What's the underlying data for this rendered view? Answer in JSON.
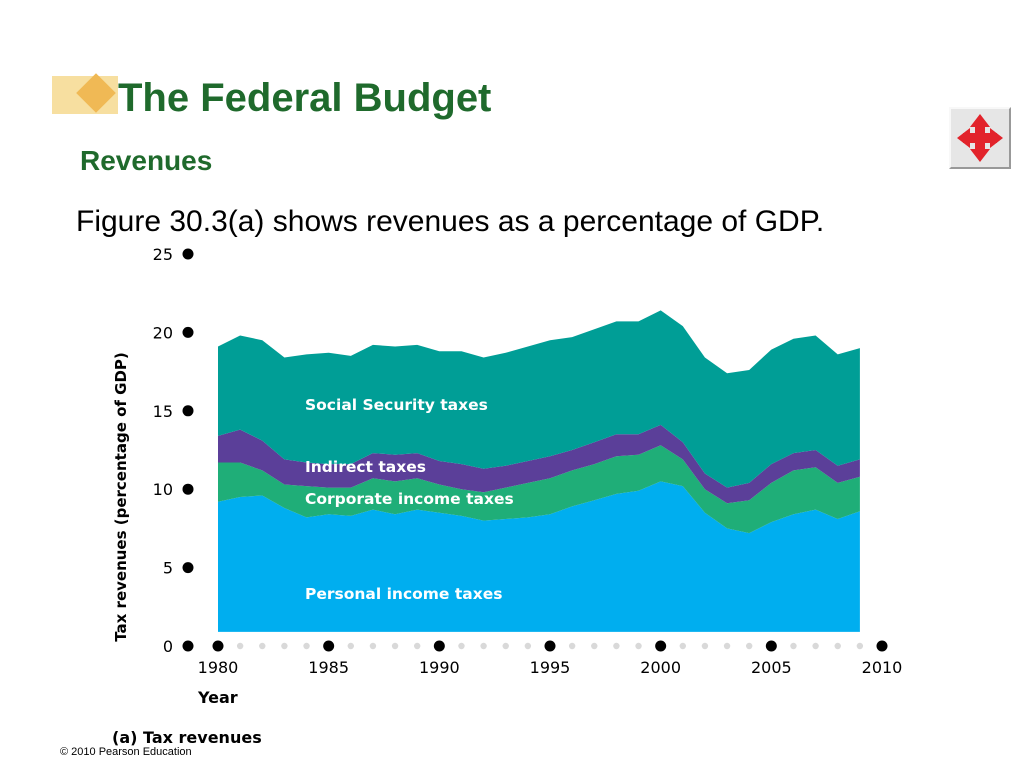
{
  "slide": {
    "title": "The Federal Budget",
    "subtitle": "Revenues",
    "body": "Figure 30.3(a) shows revenues as a percentage of GDP.",
    "footer": "© 2010 Pearson Education"
  },
  "nav_button": {
    "icon": "four-way-arrow-icon",
    "color": "#e2232b"
  },
  "colors": {
    "title": "#1f6a2c",
    "personal": "#00aeef",
    "corporate": "#1fae78",
    "indirect": "#5b3f99",
    "social": "#009e96",
    "dots": "#000000",
    "minor_dots": "#d9d9d9"
  },
  "chart_data": {
    "type": "area",
    "stacked": true,
    "caption": "(a) Tax revenues",
    "xlabel": "Year",
    "ylabel": "Tax revenues (percentage of GDP)",
    "xlim": [
      1980,
      2010
    ],
    "ylim": [
      0,
      25
    ],
    "x_ticks": [
      1980,
      1985,
      1990,
      1995,
      2000,
      2005,
      2010
    ],
    "y_ticks": [
      0,
      5,
      10,
      15,
      20,
      25
    ],
    "grid": false,
    "legend": "inline labels",
    "x": [
      1980,
      1981,
      1982,
      1983,
      1984,
      1985,
      1986,
      1987,
      1988,
      1989,
      1990,
      1991,
      1992,
      1993,
      1994,
      1995,
      1996,
      1997,
      1998,
      1999,
      2000,
      2001,
      2002,
      2003,
      2004,
      2005,
      2006,
      2007,
      2008,
      2009
    ],
    "series": [
      {
        "name": "Personal income taxes",
        "color": "#00aeef",
        "values": [
          9.2,
          9.5,
          9.6,
          8.8,
          8.2,
          8.4,
          8.3,
          8.7,
          8.4,
          8.7,
          8.5,
          8.3,
          8.0,
          8.1,
          8.2,
          8.4,
          8.9,
          9.3,
          9.7,
          9.9,
          10.5,
          10.2,
          8.5,
          7.5,
          7.2,
          7.9,
          8.4,
          8.7,
          8.1,
          8.6
        ]
      },
      {
        "name": "Corporate income taxes",
        "color": "#1fae78",
        "values": [
          2.5,
          2.2,
          1.6,
          1.5,
          2.0,
          1.7,
          1.8,
          2.0,
          2.1,
          2.0,
          1.8,
          1.7,
          1.8,
          2.0,
          2.2,
          2.3,
          2.3,
          2.3,
          2.4,
          2.3,
          2.3,
          1.7,
          1.5,
          1.6,
          2.1,
          2.5,
          2.8,
          2.7,
          2.3,
          2.2
        ]
      },
      {
        "name": "Indirect taxes",
        "color": "#5b3f99",
        "values": [
          1.7,
          2.1,
          1.9,
          1.6,
          1.5,
          1.5,
          1.5,
          1.6,
          1.7,
          1.6,
          1.5,
          1.6,
          1.5,
          1.4,
          1.4,
          1.4,
          1.3,
          1.4,
          1.4,
          1.3,
          1.3,
          1.1,
          1.0,
          1.0,
          1.1,
          1.2,
          1.1,
          1.1,
          1.1,
          1.1
        ]
      },
      {
        "name": "Social Security taxes",
        "color": "#009e96",
        "values": [
          5.7,
          6.0,
          6.4,
          6.5,
          6.9,
          7.1,
          6.9,
          6.9,
          6.9,
          6.9,
          7.0,
          7.2,
          7.1,
          7.2,
          7.3,
          7.4,
          7.2,
          7.2,
          7.2,
          7.2,
          7.3,
          7.4,
          7.4,
          7.3,
          7.2,
          7.3,
          7.3,
          7.3,
          7.1,
          7.1
        ]
      }
    ]
  }
}
